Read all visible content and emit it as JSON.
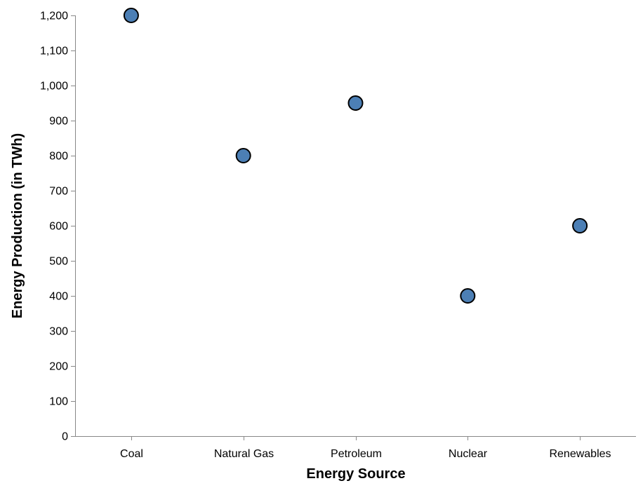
{
  "chart_data": {
    "type": "scatter",
    "title": "",
    "xlabel": "Energy Source",
    "ylabel": "Energy Production (in TWh)",
    "categories": [
      "Coal",
      "Natural Gas",
      "Petroleum",
      "Nuclear",
      "Renewables"
    ],
    "values": [
      1200,
      800,
      950,
      400,
      600
    ],
    "ylim": [
      0,
      1200
    ],
    "y_ticks": [
      0,
      100,
      200,
      300,
      400,
      500,
      600,
      700,
      800,
      900,
      1000,
      1100,
      1200
    ],
    "y_tick_labels": [
      "0",
      "100",
      "200",
      "300",
      "400",
      "500",
      "600",
      "700",
      "800",
      "900",
      "1,000",
      "1,100",
      "1,200"
    ],
    "grid": false,
    "legend": "none",
    "point_color": "#4c7fb5",
    "point_stroke": "#000000",
    "axis_color": "#888888"
  }
}
